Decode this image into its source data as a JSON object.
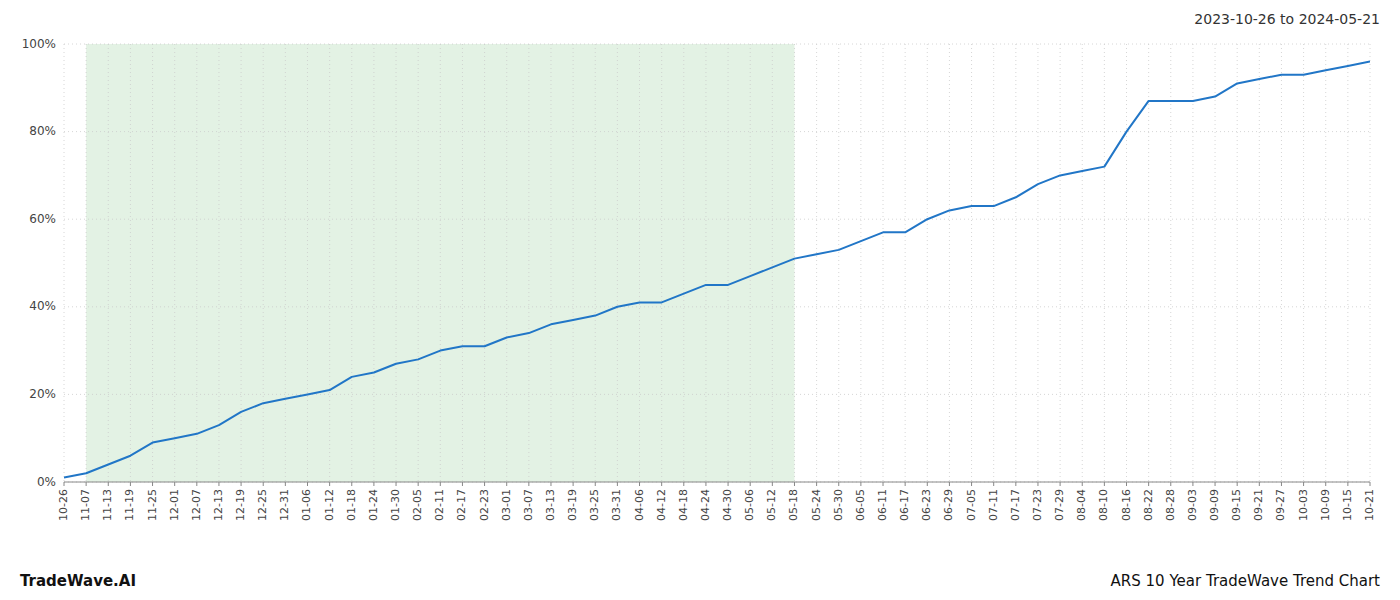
{
  "chart_data": {
    "type": "line",
    "title": "ARS 10 Year TradeWave Trend Chart",
    "subtitle": "2023-10-26 to 2024-05-21",
    "annotations": [
      "TradeWave.AI"
    ],
    "categories": [
      "10-26",
      "11-07",
      "11-13",
      "11-19",
      "11-25",
      "12-01",
      "12-07",
      "12-13",
      "12-19",
      "12-25",
      "12-31",
      "01-06",
      "01-12",
      "01-18",
      "01-24",
      "01-30",
      "02-05",
      "02-11",
      "02-17",
      "02-23",
      "03-01",
      "03-07",
      "03-13",
      "03-19",
      "03-25",
      "03-31",
      "04-06",
      "04-12",
      "04-18",
      "04-24",
      "04-30",
      "05-06",
      "05-12",
      "05-18",
      "05-24",
      "05-30",
      "06-05",
      "06-11",
      "06-17",
      "06-23",
      "06-29",
      "07-05",
      "07-11",
      "07-17",
      "07-23",
      "07-29",
      "08-04",
      "08-10",
      "08-16",
      "08-22",
      "08-28",
      "09-03",
      "09-09",
      "09-15",
      "09-21",
      "09-27",
      "10-03",
      "10-09",
      "10-15",
      "10-21"
    ],
    "values": [
      1,
      2,
      4,
      6,
      9,
      10,
      11,
      13,
      16,
      18,
      19,
      20,
      21,
      24,
      25,
      27,
      28,
      30,
      31,
      31,
      33,
      34,
      36,
      37,
      38,
      40,
      41,
      41,
      43,
      45,
      45,
      47,
      49,
      51,
      52,
      53,
      55,
      57,
      57,
      60,
      62,
      63,
      63,
      65,
      68,
      70,
      71,
      72,
      80,
      87,
      87,
      87,
      88,
      91,
      92,
      93,
      93,
      94,
      95,
      96
    ],
    "color": "#2176c7",
    "span": {
      "from": "11-07",
      "to": "05-18",
      "color": "#c8e6c9"
    },
    "ylim": [
      0,
      100
    ],
    "yticks": [
      {
        "value": 0,
        "label": "0%"
      },
      {
        "value": 20,
        "label": "20%"
      },
      {
        "value": 40,
        "label": "40%"
      },
      {
        "value": 60,
        "label": "60%"
      },
      {
        "value": 80,
        "label": "80%"
      },
      {
        "value": 100,
        "label": "100%"
      }
    ],
    "grid": true
  }
}
